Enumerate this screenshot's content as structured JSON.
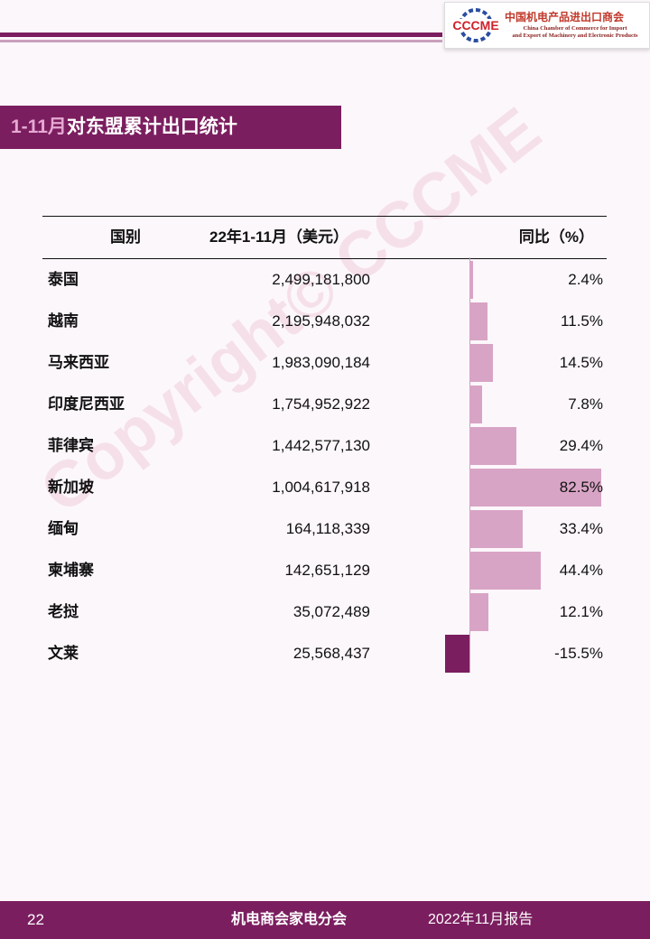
{
  "logo": {
    "emblem_text": "CCCME",
    "cn": "中国机电产品进出口商会",
    "en_line1": "China Chamber of Commerce for Import",
    "en_line2": "and Export of Machinery and Electronic Products"
  },
  "title": {
    "accent": "1-11月",
    "rest": "对东盟累计出口统计"
  },
  "table": {
    "headers": {
      "country": "国别",
      "value": "22年1-11月（美元）",
      "yoy": "同比（%）"
    },
    "rows": [
      {
        "country": "泰国",
        "value": "2,499,181,800",
        "yoy": "2.4%",
        "yoy_num": 2.4
      },
      {
        "country": "越南",
        "value": "2,195,948,032",
        "yoy": "11.5%",
        "yoy_num": 11.5
      },
      {
        "country": "马来西亚",
        "value": "1,983,090,184",
        "yoy": "14.5%",
        "yoy_num": 14.5
      },
      {
        "country": "印度尼西亚",
        "value": "1,754,952,922",
        "yoy": "7.8%",
        "yoy_num": 7.8
      },
      {
        "country": "菲律宾",
        "value": "1,442,577,130",
        "yoy": "29.4%",
        "yoy_num": 29.4
      },
      {
        "country": "新加坡",
        "value": "1,004,617,918",
        "yoy": "82.5%",
        "yoy_num": 82.5
      },
      {
        "country": "缅甸",
        "value": "164,118,339",
        "yoy": "33.4%",
        "yoy_num": 33.4
      },
      {
        "country": "柬埔寨",
        "value": "142,651,129",
        "yoy": "44.4%",
        "yoy_num": 44.4
      },
      {
        "country": "老挝",
        "value": "35,072,489",
        "yoy": "12.1%",
        "yoy_num": 12.1
      },
      {
        "country": "文莱",
        "value": "25,568,437",
        "yoy": "-15.5%",
        "yoy_num": -15.5
      }
    ]
  },
  "watermark": "Copyright© CCCME",
  "footer": {
    "page": "22",
    "org": "机电商会家电分会",
    "report": "2022年11月报告"
  },
  "colors": {
    "brand": "#7b1e5f",
    "bar_positive": "#d8a4c5",
    "bar_negative": "#7b1e5f",
    "background": "#fcf7fb"
  }
}
